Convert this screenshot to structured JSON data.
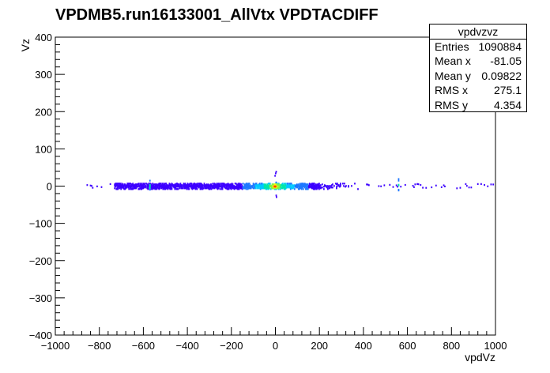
{
  "chart_data": {
    "type": "heatmap",
    "title": "VPDMB5.run16133001_AllVtx VPDTACDIFF",
    "xlabel": "vpdVz",
    "ylabel": "Vz",
    "xlim": [
      -1000,
      1000
    ],
    "ylim": [
      -400,
      400
    ],
    "x_ticks": [
      -1000,
      -800,
      -600,
      -400,
      -200,
      0,
      200,
      400,
      600,
      800,
      1000
    ],
    "y_ticks": [
      -400,
      -300,
      -200,
      -100,
      0,
      100,
      200,
      300,
      400
    ],
    "x_tick_labels": [
      "−1000",
      "−800",
      "−600",
      "−400",
      "−200",
      "0",
      "200",
      "400",
      "600",
      "800",
      "1000"
    ],
    "y_tick_labels": [
      "−400",
      "−300",
      "−200",
      "−100",
      "0",
      "100",
      "200",
      "300",
      "400"
    ],
    "stats": {
      "name": "vpdvzvz",
      "rows": [
        {
          "label": "Entries",
          "value": "1090884"
        },
        {
          "label": "Mean x",
          "value": "-81.05"
        },
        {
          "label": "Mean y",
          "value": "0.09822"
        },
        {
          "label": "RMS x",
          "value": "275.1"
        },
        {
          "label": "RMS y",
          "value": "4.354"
        }
      ]
    },
    "palette": [
      "#3c00ff",
      "#1e78ff",
      "#00c8ff",
      "#00e6aa",
      "#7af04a",
      "#ffff00",
      "#ff8c00",
      "#ff0000"
    ],
    "band": {
      "main_x_range": [
        -730,
        200
      ],
      "sparse_x_range": [
        -870,
        1000
      ],
      "core_x": 0,
      "core_y": 0,
      "spike_x": [
        -570,
        560
      ]
    }
  }
}
